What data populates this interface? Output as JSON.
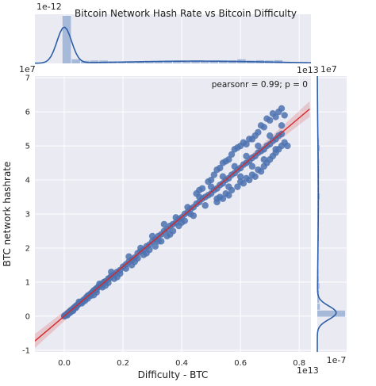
{
  "chart_data": {
    "type": "scatter",
    "title": "Bitcoin Network Hash Rate vs Bitcoin Difficulty",
    "xlabel": "Difficulty - BTC",
    "ylabel": "BTC network hashrate",
    "x_offset_label": "1e13",
    "y_offset_label": "1e7",
    "x_ticks": [
      "0.0",
      "0.2",
      "0.4",
      "0.6",
      "0.8"
    ],
    "y_ticks": [
      "-1",
      "0",
      "1",
      "2",
      "3",
      "4",
      "5",
      "6",
      "7"
    ],
    "xlim": [
      -0.1,
      0.84
    ],
    "ylim": [
      -1.05,
      7.05
    ],
    "annotation": "pearsonr = 0.99; p = 0",
    "top_marginal_offset_label": "1e-12",
    "top_marginal_right_label": "1e13",
    "right_marginal_offset_label": "1e7",
    "right_marginal_bottom_label": "1e-7",
    "grid": true,
    "colors": {
      "points": "#4c72b0",
      "regression": "#d62728",
      "background": "#eaeaf2",
      "grid": "#ffffff",
      "kde": "#2f5fa7",
      "hist": "#9fb4d6"
    },
    "regression": {
      "slope": 7.28,
      "intercept": 0.0
    },
    "points": [
      [
        0.001,
        0.004
      ],
      [
        0.002,
        0.012
      ],
      [
        0.004,
        0.024
      ],
      [
        0.006,
        0.04
      ],
      [
        0.008,
        0.05
      ],
      [
        0.01,
        0.07
      ],
      [
        0.012,
        0.09
      ],
      [
        0.015,
        0.1
      ],
      [
        0.018,
        0.13
      ],
      [
        0.02,
        0.15
      ],
      [
        0.024,
        0.18
      ],
      [
        0.028,
        0.2
      ],
      [
        0.03,
        0.22
      ],
      [
        0.035,
        0.26
      ],
      [
        0.04,
        0.3
      ],
      [
        0.045,
        0.33
      ],
      [
        0.05,
        0.36
      ],
      [
        0.055,
        0.4
      ],
      [
        0.06,
        0.43
      ],
      [
        0.065,
        0.47
      ],
      [
        0.07,
        0.5
      ],
      [
        0.075,
        0.55
      ],
      [
        0.08,
        0.6
      ],
      [
        0.085,
        0.62
      ],
      [
        0.09,
        0.66
      ],
      [
        0.095,
        0.7
      ],
      [
        0.1,
        0.75
      ],
      [
        0.105,
        0.78
      ],
      [
        0.11,
        0.82
      ],
      [
        0.115,
        0.85
      ],
      [
        0.12,
        0.88
      ],
      [
        0.125,
        0.92
      ],
      [
        0.13,
        0.95
      ],
      [
        0.135,
        1.0
      ],
      [
        0.14,
        1.02
      ],
      [
        0.15,
        1.1
      ],
      [
        0.155,
        1.12
      ],
      [
        0.16,
        1.18
      ],
      [
        0.17,
        1.22
      ],
      [
        0.18,
        1.3
      ],
      [
        0.19,
        1.35
      ],
      [
        0.2,
        1.45
      ],
      [
        0.21,
        1.52
      ],
      [
        0.22,
        1.6
      ],
      [
        0.23,
        1.65
      ],
      [
        0.24,
        1.72
      ],
      [
        0.25,
        1.85
      ],
      [
        0.26,
        1.9
      ],
      [
        0.27,
        1.95
      ],
      [
        0.28,
        2.05
      ],
      [
        0.29,
        2.1
      ],
      [
        0.3,
        2.2
      ],
      [
        0.31,
        2.25
      ],
      [
        0.32,
        2.35
      ],
      [
        0.33,
        2.4
      ],
      [
        0.34,
        2.5
      ],
      [
        0.35,
        2.55
      ],
      [
        0.36,
        2.65
      ],
      [
        0.37,
        2.7
      ],
      [
        0.38,
        2.75
      ],
      [
        0.39,
        2.85
      ],
      [
        0.4,
        2.9
      ],
      [
        0.41,
        3.0
      ],
      [
        0.42,
        3.05
      ],
      [
        0.43,
        3.15
      ],
      [
        0.44,
        3.2
      ],
      [
        0.45,
        3.3
      ],
      [
        0.46,
        3.35
      ],
      [
        0.47,
        3.45
      ],
      [
        0.48,
        3.5
      ],
      [
        0.49,
        3.55
      ],
      [
        0.5,
        3.6
      ],
      [
        0.51,
        3.7
      ],
      [
        0.52,
        3.75
      ],
      [
        0.53,
        3.85
      ],
      [
        0.54,
        3.9
      ],
      [
        0.55,
        4.0
      ],
      [
        0.56,
        4.05
      ],
      [
        0.57,
        4.15
      ],
      [
        0.58,
        4.2
      ],
      [
        0.59,
        4.3
      ],
      [
        0.6,
        4.35
      ],
      [
        0.61,
        4.45
      ],
      [
        0.62,
        4.5
      ],
      [
        0.63,
        4.55
      ],
      [
        0.64,
        4.65
      ],
      [
        0.65,
        4.7
      ],
      [
        0.66,
        4.8
      ],
      [
        0.67,
        4.85
      ],
      [
        0.68,
        4.9
      ],
      [
        0.69,
        5.0
      ],
      [
        0.7,
        5.05
      ],
      [
        0.71,
        5.15
      ],
      [
        0.72,
        5.2
      ],
      [
        0.73,
        5.3
      ],
      [
        0.74,
        5.35
      ],
      [
        0.03,
        0.16
      ],
      [
        0.05,
        0.42
      ],
      [
        0.07,
        0.45
      ],
      [
        0.09,
        0.6
      ],
      [
        0.11,
        0.7
      ],
      [
        0.12,
        0.95
      ],
      [
        0.14,
        0.9
      ],
      [
        0.16,
        1.3
      ],
      [
        0.18,
        1.15
      ],
      [
        0.22,
        1.75
      ],
      [
        0.24,
        1.6
      ],
      [
        0.26,
        2.0
      ],
      [
        0.28,
        1.85
      ],
      [
        0.3,
        2.35
      ],
      [
        0.32,
        2.2
      ],
      [
        0.34,
        2.7
      ],
      [
        0.36,
        2.4
      ],
      [
        0.38,
        2.9
      ],
      [
        0.4,
        2.75
      ],
      [
        0.42,
        3.2
      ],
      [
        0.44,
        2.95
      ],
      [
        0.46,
        3.5
      ],
      [
        0.48,
        3.25
      ],
      [
        0.5,
        3.8
      ],
      [
        0.52,
        3.45
      ],
      [
        0.54,
        4.1
      ],
      [
        0.56,
        3.8
      ],
      [
        0.58,
        4.4
      ],
      [
        0.6,
        4.1
      ],
      [
        0.62,
        4.7
      ],
      [
        0.64,
        4.4
      ],
      [
        0.66,
        5.0
      ],
      [
        0.68,
        4.6
      ],
      [
        0.7,
        5.3
      ],
      [
        0.72,
        4.9
      ],
      [
        0.74,
        5.6
      ],
      [
        0.53,
        3.5
      ],
      [
        0.54,
        3.45
      ],
      [
        0.55,
        3.6
      ],
      [
        0.56,
        3.55
      ],
      [
        0.57,
        3.7
      ],
      [
        0.52,
        3.35
      ],
      [
        0.59,
        3.8
      ],
      [
        0.6,
        3.95
      ],
      [
        0.61,
        3.9
      ],
      [
        0.62,
        4.05
      ],
      [
        0.63,
        4.0
      ],
      [
        0.64,
        4.15
      ],
      [
        0.65,
        4.1
      ],
      [
        0.66,
        4.3
      ],
      [
        0.67,
        4.25
      ],
      [
        0.68,
        4.4
      ],
      [
        0.69,
        4.5
      ],
      [
        0.7,
        4.6
      ],
      [
        0.71,
        4.7
      ],
      [
        0.72,
        4.8
      ],
      [
        0.73,
        4.9
      ],
      [
        0.74,
        5.0
      ],
      [
        0.75,
        5.1
      ],
      [
        0.76,
        5.0
      ],
      [
        0.62,
        5.05
      ],
      [
        0.64,
        5.2
      ],
      [
        0.66,
        5.4
      ],
      [
        0.68,
        5.55
      ],
      [
        0.7,
        5.75
      ],
      [
        0.72,
        5.85
      ],
      [
        0.73,
        6.0
      ],
      [
        0.74,
        6.1
      ],
      [
        0.75,
        5.9
      ],
      [
        0.71,
        5.95
      ],
      [
        0.69,
        5.8
      ],
      [
        0.67,
        5.6
      ],
      [
        0.57,
        4.75
      ],
      [
        0.58,
        4.9
      ],
      [
        0.6,
        5.0
      ],
      [
        0.56,
        4.6
      ],
      [
        0.55,
        4.55
      ],
      [
        0.53,
        4.35
      ],
      [
        0.51,
        4.15
      ],
      [
        0.5,
        4.0
      ],
      [
        0.49,
        3.95
      ],
      [
        0.47,
        3.75
      ],
      [
        0.46,
        3.7
      ],
      [
        0.45,
        3.6
      ],
      [
        0.52,
        4.3
      ],
      [
        0.54,
        4.5
      ],
      [
        0.59,
        4.95
      ],
      [
        0.61,
        5.1
      ],
      [
        0.63,
        5.2
      ],
      [
        0.65,
        5.3
      ],
      [
        0.37,
        2.5
      ],
      [
        0.39,
        2.65
      ],
      [
        0.41,
        2.8
      ],
      [
        0.43,
        3.0
      ],
      [
        0.35,
        2.35
      ],
      [
        0.33,
        2.2
      ],
      [
        0.31,
        2.05
      ],
      [
        0.29,
        1.95
      ],
      [
        0.27,
        1.8
      ],
      [
        0.25,
        1.7
      ],
      [
        0.23,
        1.5
      ],
      [
        0.21,
        1.4
      ],
      [
        0.19,
        1.25
      ],
      [
        0.17,
        1.1
      ],
      [
        0.15,
        0.98
      ],
      [
        0.13,
        0.85
      ],
      [
        0.11,
        0.78
      ],
      [
        0.1,
        0.62
      ],
      [
        0.08,
        0.52
      ],
      [
        0.06,
        0.38
      ],
      [
        0.04,
        0.25
      ],
      [
        0.02,
        0.1
      ],
      [
        0.01,
        0.03
      ],
      [
        0.0,
        0.0
      ],
      [
        0.005,
        0.02
      ],
      [
        0.007,
        0.03
      ],
      [
        0.009,
        0.06
      ],
      [
        0.011,
        0.05
      ],
      [
        0.013,
        0.08
      ],
      [
        0.016,
        0.09
      ],
      [
        0.019,
        0.12
      ],
      [
        0.022,
        0.14
      ],
      [
        0.026,
        0.17
      ],
      [
        0.032,
        0.21
      ],
      [
        0.038,
        0.27
      ],
      [
        0.044,
        0.31
      ]
    ]
  }
}
